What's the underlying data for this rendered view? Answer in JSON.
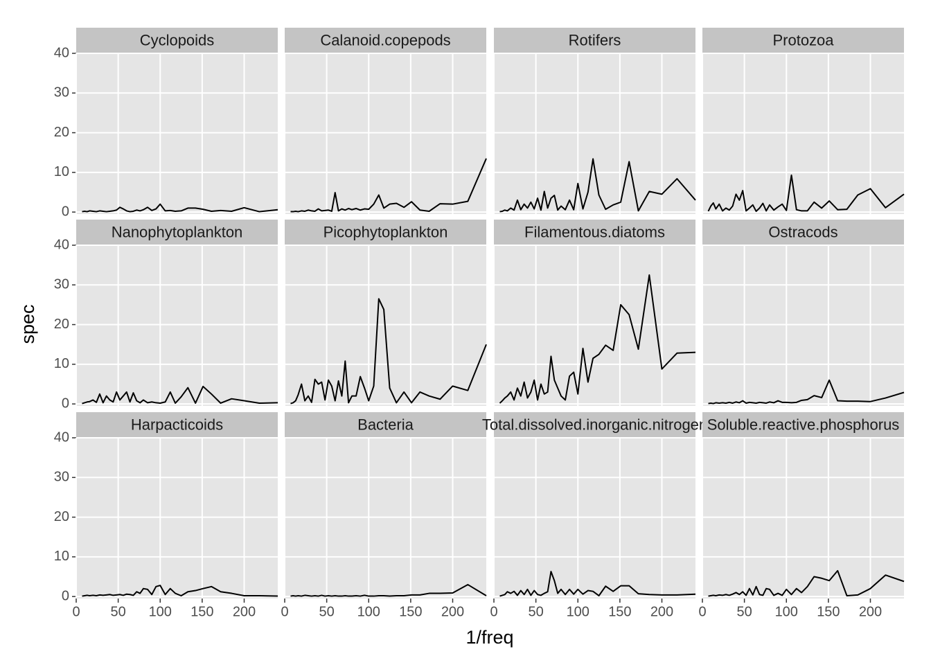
{
  "xlabel": "1/freq",
  "ylabel": "spec",
  "chart_data": [
    {
      "type": "line",
      "title": "Cyclopoids",
      "color": "#000000",
      "grid": true,
      "xlim": [
        0,
        240
      ],
      "ylim": [
        -0.5,
        40
      ],
      "xticks": [
        0,
        50,
        100,
        150,
        200
      ],
      "yticks": [
        0,
        10,
        20,
        30,
        40
      ],
      "x": [
        7,
        10,
        13,
        16,
        20,
        24,
        28,
        32,
        36,
        40,
        44,
        48,
        52,
        56,
        60,
        64,
        68,
        72,
        76,
        80,
        85,
        90,
        95,
        100,
        106,
        112,
        118,
        125,
        133,
        142,
        151,
        161,
        172,
        185,
        200,
        218,
        240
      ],
      "values": [
        0.1,
        0.2,
        0.1,
        0.3,
        0.2,
        0.1,
        0.3,
        0.2,
        0.1,
        0.2,
        0.3,
        0.5,
        1.2,
        0.8,
        0.3,
        0.1,
        0.2,
        0.5,
        0.3,
        0.6,
        1.2,
        0.4,
        0.8,
        2.0,
        0.3,
        0.4,
        0.2,
        0.3,
        1.0,
        1.0,
        0.7,
        0.2,
        0.4,
        0.2,
        1.1,
        0.1,
        0.6
      ]
    },
    {
      "type": "line",
      "title": "Calanoid.copepods",
      "color": "#000000",
      "grid": true,
      "xlim": [
        0,
        240
      ],
      "ylim": [
        -0.5,
        40
      ],
      "xticks": [
        0,
        50,
        100,
        150,
        200
      ],
      "yticks": [
        0,
        10,
        20,
        30,
        40
      ],
      "x": [
        7,
        10,
        13,
        16,
        20,
        24,
        28,
        32,
        36,
        40,
        44,
        48,
        52,
        56,
        60,
        64,
        68,
        72,
        76,
        80,
        85,
        90,
        95,
        100,
        106,
        112,
        118,
        125,
        133,
        142,
        151,
        161,
        172,
        185,
        200,
        218,
        240
      ],
      "values": [
        0.1,
        0.1,
        0.2,
        0.1,
        0.3,
        0.2,
        0.5,
        0.3,
        0.2,
        0.8,
        0.3,
        0.4,
        0.5,
        0.2,
        4.9,
        0.3,
        0.8,
        0.5,
        0.9,
        0.6,
        0.9,
        0.5,
        0.8,
        0.7,
        2.0,
        4.3,
        1.0,
        2.0,
        2.2,
        1.2,
        2.6,
        0.5,
        0.2,
        2.1,
        2.0,
        2.7,
        13.5
      ]
    },
    {
      "type": "line",
      "title": "Rotifers",
      "color": "#000000",
      "grid": true,
      "xlim": [
        0,
        240
      ],
      "ylim": [
        -0.5,
        40
      ],
      "xticks": [
        0,
        50,
        100,
        150,
        200
      ],
      "yticks": [
        0,
        10,
        20,
        30,
        40
      ],
      "x": [
        7,
        10,
        13,
        16,
        20,
        24,
        28,
        32,
        36,
        40,
        44,
        48,
        52,
        56,
        60,
        64,
        68,
        72,
        76,
        80,
        85,
        90,
        95,
        100,
        106,
        112,
        118,
        125,
        133,
        142,
        151,
        161,
        172,
        185,
        200,
        218,
        240
      ],
      "values": [
        0.1,
        0.2,
        0.5,
        0.3,
        1.0,
        0.5,
        3.0,
        0.6,
        2.0,
        1.0,
        2.5,
        0.8,
        3.5,
        0.5,
        5.2,
        1.0,
        3.5,
        4.2,
        0.5,
        1.5,
        0.6,
        3.0,
        0.6,
        7.2,
        0.8,
        5.0,
        13.4,
        4.3,
        0.7,
        1.8,
        2.5,
        12.7,
        0.3,
        5.2,
        4.5,
        8.4,
        3.0
      ]
    },
    {
      "type": "line",
      "title": "Protozoa",
      "color": "#000000",
      "grid": true,
      "xlim": [
        0,
        240
      ],
      "ylim": [
        -0.5,
        40
      ],
      "xticks": [
        0,
        50,
        100,
        150,
        200
      ],
      "yticks": [
        0,
        10,
        20,
        30,
        40
      ],
      "x": [
        7,
        10,
        13,
        16,
        20,
        24,
        28,
        32,
        36,
        40,
        44,
        48,
        52,
        56,
        60,
        64,
        68,
        72,
        76,
        80,
        85,
        90,
        95,
        100,
        106,
        112,
        118,
        125,
        133,
        142,
        151,
        161,
        172,
        185,
        200,
        218,
        240
      ],
      "values": [
        0.2,
        1.5,
        2.3,
        0.8,
        2.0,
        0.3,
        1.0,
        0.5,
        1.5,
        4.5,
        3.0,
        5.4,
        0.3,
        1.0,
        1.8,
        0.2,
        1.0,
        2.2,
        0.3,
        1.8,
        0.5,
        1.3,
        2.0,
        0.4,
        9.3,
        0.6,
        0.3,
        0.3,
        2.5,
        1.0,
        2.8,
        0.6,
        0.7,
        4.3,
        5.9,
        1.1,
        4.5
      ]
    },
    {
      "type": "line",
      "title": "Nanophytoplankton",
      "color": "#000000",
      "grid": true,
      "xlim": [
        0,
        240
      ],
      "ylim": [
        -0.5,
        40
      ],
      "xticks": [
        0,
        50,
        100,
        150,
        200
      ],
      "yticks": [
        0,
        10,
        20,
        30,
        40
      ],
      "x": [
        7,
        10,
        13,
        16,
        20,
        24,
        28,
        32,
        36,
        40,
        44,
        48,
        52,
        56,
        60,
        64,
        68,
        72,
        76,
        80,
        85,
        90,
        95,
        100,
        106,
        112,
        118,
        125,
        133,
        142,
        151,
        161,
        172,
        185,
        200,
        218,
        240
      ],
      "values": [
        0.1,
        0.3,
        0.5,
        0.6,
        1.0,
        0.4,
        2.5,
        0.3,
        2.0,
        1.0,
        0.5,
        3.0,
        1.0,
        2.0,
        3.0,
        0.5,
        2.8,
        0.8,
        0.3,
        1.0,
        0.3,
        0.5,
        0.3,
        0.2,
        0.5,
        3.0,
        0.2,
        1.8,
        4.1,
        0.2,
        4.4,
        2.5,
        0.2,
        1.3,
        0.8,
        0.2,
        0.3
      ]
    },
    {
      "type": "line",
      "title": "Picophytoplankton",
      "color": "#000000",
      "grid": true,
      "xlim": [
        0,
        240
      ],
      "ylim": [
        -0.5,
        40
      ],
      "xticks": [
        0,
        50,
        100,
        150,
        200
      ],
      "yticks": [
        0,
        10,
        20,
        30,
        40
      ],
      "x": [
        7,
        10,
        13,
        16,
        20,
        24,
        28,
        32,
        36,
        40,
        44,
        48,
        52,
        56,
        60,
        64,
        68,
        72,
        76,
        80,
        85,
        90,
        95,
        100,
        106,
        112,
        118,
        125,
        133,
        142,
        151,
        161,
        172,
        185,
        200,
        218,
        240
      ],
      "values": [
        0.1,
        0.3,
        0.8,
        2.3,
        5.0,
        0.8,
        2.0,
        0.4,
        6.2,
        5.0,
        5.5,
        1.0,
        6.0,
        4.5,
        0.8,
        5.8,
        2.0,
        10.8,
        0.3,
        2.0,
        2.0,
        6.9,
        4.0,
        0.8,
        4.5,
        26.5,
        23.8,
        4.0,
        0.3,
        3.0,
        0.3,
        3.0,
        2.0,
        1.2,
        4.5,
        3.4,
        15.0
      ]
    },
    {
      "type": "line",
      "title": "Filamentous.diatoms",
      "color": "#000000",
      "grid": true,
      "xlim": [
        0,
        240
      ],
      "ylim": [
        -0.5,
        40
      ],
      "xticks": [
        0,
        50,
        100,
        150,
        200
      ],
      "yticks": [
        0,
        10,
        20,
        30,
        40
      ],
      "x": [
        7,
        10,
        13,
        16,
        20,
        24,
        28,
        32,
        36,
        40,
        44,
        48,
        52,
        56,
        60,
        64,
        68,
        72,
        76,
        80,
        85,
        90,
        95,
        100,
        106,
        112,
        118,
        125,
        133,
        142,
        151,
        161,
        172,
        185,
        200,
        218,
        240
      ],
      "values": [
        0.2,
        0.8,
        1.5,
        2.0,
        3.0,
        1.0,
        4.0,
        2.0,
        5.5,
        1.5,
        3.0,
        6.0,
        1.0,
        5.0,
        2.5,
        3.0,
        12.0,
        6.0,
        4.0,
        2.0,
        1.0,
        7.0,
        8.0,
        2.5,
        14.0,
        5.5,
        11.5,
        12.5,
        14.8,
        13.5,
        25.0,
        22.5,
        13.8,
        32.5,
        8.8,
        12.8,
        13.0
      ]
    },
    {
      "type": "line",
      "title": "Ostracods",
      "color": "#000000",
      "grid": true,
      "xlim": [
        0,
        240
      ],
      "ylim": [
        -0.5,
        40
      ],
      "xticks": [
        0,
        50,
        100,
        150,
        200
      ],
      "yticks": [
        0,
        10,
        20,
        30,
        40
      ],
      "x": [
        7,
        10,
        13,
        16,
        20,
        24,
        28,
        32,
        36,
        40,
        44,
        48,
        52,
        56,
        60,
        64,
        68,
        72,
        76,
        80,
        85,
        90,
        95,
        100,
        106,
        112,
        118,
        125,
        133,
        142,
        151,
        161,
        172,
        185,
        200,
        218,
        240
      ],
      "values": [
        0.1,
        0.2,
        0.1,
        0.3,
        0.2,
        0.3,
        0.2,
        0.4,
        0.2,
        0.5,
        0.3,
        0.8,
        0.2,
        0.4,
        0.3,
        0.2,
        0.4,
        0.3,
        0.2,
        0.5,
        0.3,
        0.8,
        0.4,
        0.4,
        0.3,
        0.4,
        0.9,
        1.1,
        2.1,
        1.6,
        6.0,
        0.8,
        0.7,
        0.7,
        0.6,
        1.5,
        2.9
      ]
    },
    {
      "type": "line",
      "title": "Harpacticoids",
      "color": "#000000",
      "grid": true,
      "xlim": [
        0,
        240
      ],
      "ylim": [
        -0.5,
        40
      ],
      "xticks": [
        0,
        50,
        100,
        150,
        200
      ],
      "yticks": [
        0,
        10,
        20,
        30,
        40
      ],
      "x": [
        7,
        10,
        13,
        16,
        20,
        24,
        28,
        32,
        36,
        40,
        44,
        48,
        52,
        56,
        60,
        64,
        68,
        72,
        76,
        80,
        85,
        90,
        95,
        100,
        106,
        112,
        118,
        125,
        133,
        142,
        151,
        161,
        172,
        185,
        200,
        218,
        240
      ],
      "values": [
        0.1,
        0.2,
        0.3,
        0.2,
        0.3,
        0.2,
        0.4,
        0.3,
        0.4,
        0.5,
        0.3,
        0.4,
        0.5,
        0.3,
        0.6,
        0.5,
        0.3,
        1.2,
        0.8,
        2.0,
        1.8,
        0.5,
        2.5,
        2.8,
        0.5,
        2.0,
        0.8,
        0.2,
        1.2,
        1.5,
        2.0,
        2.5,
        1.2,
        0.8,
        0.2,
        0.2,
        0.1
      ]
    },
    {
      "type": "line",
      "title": "Bacteria",
      "color": "#000000",
      "grid": true,
      "xlim": [
        0,
        240
      ],
      "ylim": [
        -0.5,
        40
      ],
      "xticks": [
        0,
        50,
        100,
        150,
        200
      ],
      "yticks": [
        0,
        10,
        20,
        30,
        40
      ],
      "x": [
        7,
        10,
        13,
        16,
        20,
        24,
        28,
        32,
        36,
        40,
        44,
        48,
        52,
        56,
        60,
        64,
        68,
        72,
        76,
        80,
        85,
        90,
        95,
        100,
        106,
        112,
        118,
        125,
        133,
        142,
        151,
        161,
        172,
        185,
        200,
        218,
        240
      ],
      "values": [
        0.1,
        0.2,
        0.1,
        0.2,
        0.1,
        0.3,
        0.2,
        0.1,
        0.2,
        0.1,
        0.3,
        0.1,
        0.2,
        0.1,
        0.2,
        0.1,
        0.1,
        0.2,
        0.1,
        0.1,
        0.2,
        0.1,
        0.3,
        0.1,
        0.1,
        0.2,
        0.2,
        0.1,
        0.2,
        0.2,
        0.4,
        0.4,
        0.8,
        0.8,
        0.9,
        3.0,
        0.2
      ]
    },
    {
      "type": "line",
      "title": "Total.dissolved.inorganic.nitrogen",
      "color": "#000000",
      "grid": true,
      "xlim": [
        0,
        240
      ],
      "ylim": [
        -0.5,
        40
      ],
      "xticks": [
        0,
        50,
        100,
        150,
        200
      ],
      "yticks": [
        0,
        10,
        20,
        30,
        40
      ],
      "x": [
        7,
        10,
        13,
        16,
        20,
        24,
        28,
        32,
        36,
        40,
        44,
        48,
        52,
        56,
        60,
        64,
        68,
        72,
        76,
        80,
        85,
        90,
        95,
        100,
        106,
        112,
        118,
        125,
        133,
        142,
        151,
        161,
        172,
        185,
        200,
        218,
        240
      ],
      "values": [
        0.1,
        0.3,
        0.5,
        1.2,
        0.8,
        1.3,
        0.3,
        1.5,
        0.5,
        1.8,
        0.3,
        1.5,
        0.5,
        0.3,
        0.8,
        1.2,
        6.3,
        4.0,
        0.8,
        1.8,
        0.5,
        1.8,
        0.6,
        1.8,
        0.6,
        1.5,
        1.3,
        0.2,
        2.6,
        1.3,
        2.7,
        2.7,
        0.7,
        0.5,
        0.4,
        0.4,
        0.6
      ]
    },
    {
      "type": "line",
      "title": "Soluble.reactive.phosphorus",
      "color": "#000000",
      "grid": true,
      "xlim": [
        0,
        240
      ],
      "ylim": [
        -0.5,
        40
      ],
      "xticks": [
        0,
        50,
        100,
        150,
        200
      ],
      "yticks": [
        0,
        10,
        20,
        30,
        40
      ],
      "x": [
        7,
        10,
        13,
        16,
        20,
        24,
        28,
        32,
        36,
        40,
        44,
        48,
        52,
        56,
        60,
        64,
        68,
        72,
        76,
        80,
        85,
        90,
        95,
        100,
        106,
        112,
        118,
        125,
        133,
        142,
        151,
        161,
        172,
        185,
        200,
        218,
        240
      ],
      "values": [
        0.1,
        0.2,
        0.3,
        0.2,
        0.4,
        0.3,
        0.5,
        0.3,
        0.6,
        1.0,
        0.5,
        1.2,
        0.3,
        2.0,
        0.4,
        2.5,
        0.5,
        0.3,
        2.0,
        1.8,
        0.3,
        0.8,
        0.3,
        1.8,
        0.5,
        2.0,
        1.0,
        2.5,
        5.0,
        4.6,
        4.0,
        6.5,
        0.2,
        0.4,
        2.0,
        5.4,
        3.8
      ]
    }
  ]
}
